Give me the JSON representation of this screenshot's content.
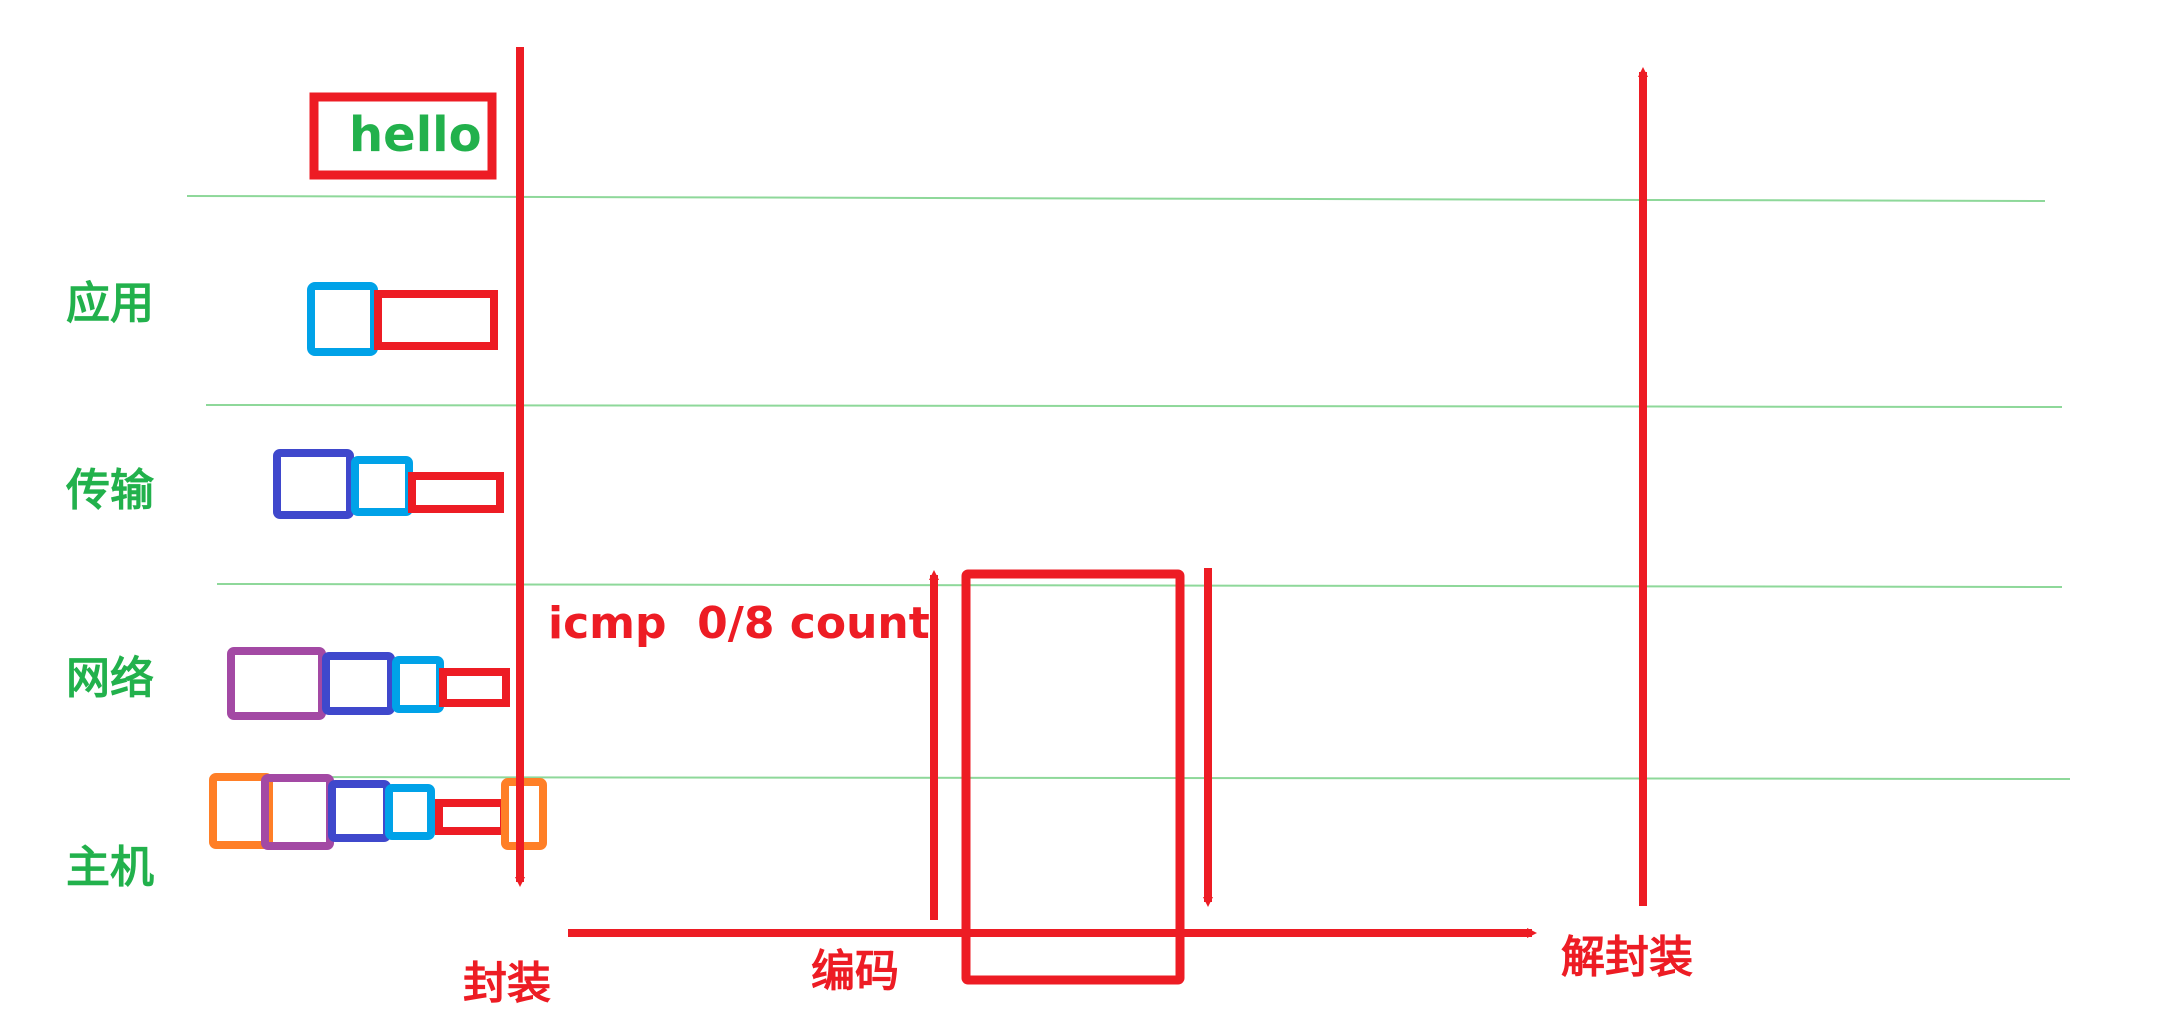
{
  "top_box_text": "hello",
  "layers": [
    {
      "key": "app",
      "label": "应用"
    },
    {
      "key": "transport",
      "label": "传输"
    },
    {
      "key": "network",
      "label": "网络"
    },
    {
      "key": "host",
      "label": "主机"
    }
  ],
  "annotation": "icmp  0/8 count",
  "bottom_labels": {
    "encapsulate": "封装",
    "encode": "编码",
    "decapsulate": "解封装"
  },
  "colors": {
    "red": "#ed1c24",
    "green": "#22b14c",
    "cyan": "#00a2e8",
    "blue": "#3f48cc",
    "purple": "#a349a4",
    "orange": "#ff7f27",
    "divider": "#8ed89a"
  }
}
